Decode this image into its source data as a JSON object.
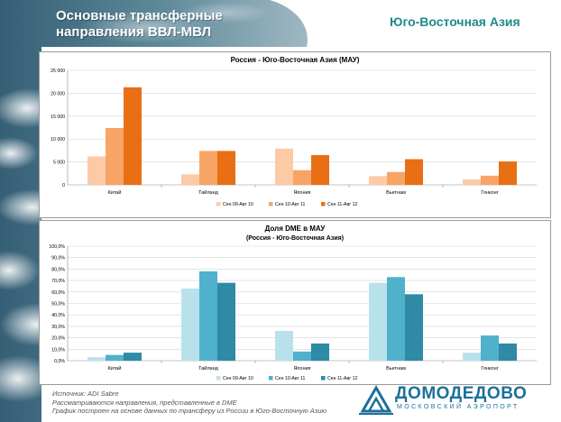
{
  "header": {
    "title_line1": "Основные трансферные",
    "title_line2": "направления ВВЛ-МВЛ",
    "region": "Юго-Восточная Азия"
  },
  "footer": {
    "line1": "Источник: ADI Sabre",
    "line2": "Рассматриваются направления, представленные в DME",
    "line3": "График построен на основе данных по трансферу из России в Юго-Восточную Азию"
  },
  "logo": {
    "name": "ДОМОДЕДОВО",
    "subtitle": "МОСКОВСКИЙ АЭРОПОРТ"
  },
  "colors": {
    "chart1": [
      "#fccaa4",
      "#f8a465",
      "#e86f14"
    ],
    "chart2": [
      "#b9e1ec",
      "#4fb1cc",
      "#2e8aa5"
    ]
  },
  "chart_data": [
    {
      "type": "bar",
      "title": "Россия - Юго-Восточная  Азия (МАУ)",
      "subtitle": "",
      "categories": [
        "Китай",
        "Тайланд",
        "Япония",
        "Вьетнам",
        "Гонконг"
      ],
      "series": [
        {
          "name": "Сен 09-Авг 10",
          "values": [
            6200,
            2300,
            7900,
            1900,
            1200
          ]
        },
        {
          "name": "Сен 10-Авг 11",
          "values": [
            12400,
            7400,
            3200,
            2800,
            2000
          ]
        },
        {
          "name": "Сен 11-Авг 12",
          "values": [
            21300,
            7400,
            6500,
            5600,
            5100
          ]
        }
      ],
      "ylim": [
        0,
        25000
      ],
      "yticks": [
        "0",
        "5 000",
        "10 000",
        "15 000",
        "20 000",
        "25 000"
      ],
      "ytick_values": [
        0,
        5000,
        10000,
        15000,
        20000,
        25000
      ],
      "grid": true,
      "legend": "bottom"
    },
    {
      "type": "bar",
      "title": "Доля DME в МАУ",
      "subtitle": "(Россия - Юго-Восточная Азия)",
      "categories": [
        "Китай",
        "Тайланд",
        "Япония",
        "Вьетнам",
        "Гонконг"
      ],
      "series": [
        {
          "name": "Сен 09-Авг 10",
          "values": [
            3,
            63,
            26,
            68,
            7
          ]
        },
        {
          "name": "Сен 10-Авг 11",
          "values": [
            5,
            78,
            8,
            73,
            22
          ]
        },
        {
          "name": "Сен 11-Авг 12",
          "values": [
            7,
            68,
            15,
            58,
            15
          ]
        }
      ],
      "ylim": [
        0,
        100
      ],
      "yticks": [
        "0,0%",
        "10,0%",
        "20,0%",
        "30,0%",
        "40,0%",
        "50,0%",
        "60,0%",
        "70,0%",
        "80,0%",
        "90,0%",
        "100,0%"
      ],
      "ytick_values": [
        0,
        10,
        20,
        30,
        40,
        50,
        60,
        70,
        80,
        90,
        100
      ],
      "grid": true,
      "legend": "bottom"
    }
  ]
}
